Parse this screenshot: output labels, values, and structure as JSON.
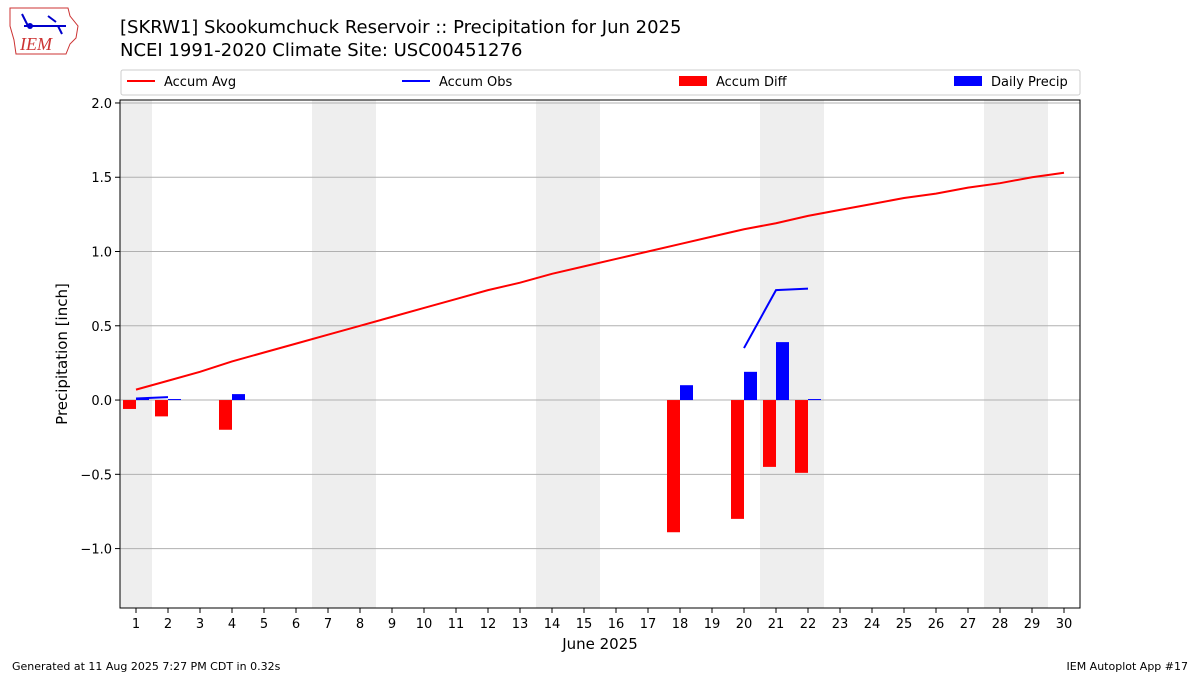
{
  "header": {
    "title_line1": "[SKRW1] Skookumchuck Reservoir :: Precipitation for Jun 2025",
    "title_line2": "NCEI 1991-2020 Climate Site: USC00451276"
  },
  "logo": {
    "text": "IEM"
  },
  "footer": {
    "left": "Generated at 11 Aug 2025 7:27 PM CDT in 0.32s",
    "right": "IEM Autoplot App #17"
  },
  "colors": {
    "avg": "#ff0000",
    "obs": "#0000ff",
    "diff": "#ff0000",
    "daily": "#0000ff",
    "weekend": "#eeeeee",
    "grid": "#b0b0b0"
  },
  "chart_data": {
    "type": "bar",
    "title": "[SKRW1] Skookumchuck Reservoir :: Precipitation for Jun 2025",
    "xlabel": "June 2025",
    "ylabel": "Precipitation [inch]",
    "xlim": [
      0.5,
      30.5
    ],
    "ylim": [
      -1.4,
      2.02
    ],
    "yticks": [
      -1.0,
      -0.5,
      0.0,
      0.5,
      1.0,
      1.5,
      2.0
    ],
    "ytick_labels": [
      "−1.0",
      "−0.5",
      "0.0",
      "0.5",
      "1.0",
      "1.5",
      "2.0"
    ],
    "days": [
      1,
      2,
      3,
      4,
      5,
      6,
      7,
      8,
      9,
      10,
      11,
      12,
      13,
      14,
      15,
      16,
      17,
      18,
      19,
      20,
      21,
      22,
      23,
      24,
      25,
      26,
      27,
      28,
      29,
      30
    ],
    "weekend_days": [
      1,
      7,
      8,
      14,
      15,
      21,
      22,
      28,
      29
    ],
    "legend": {
      "placement": "top",
      "entries": [
        {
          "label": "Accum Avg",
          "kind": "line",
          "color": "#ff0000"
        },
        {
          "label": "Accum Obs",
          "kind": "line",
          "color": "#0000ff"
        },
        {
          "label": "Accum Diff",
          "kind": "bar",
          "color": "#ff0000"
        },
        {
          "label": "Daily Precip",
          "kind": "bar",
          "color": "#0000ff"
        }
      ]
    },
    "series": [
      {
        "name": "Accum Avg",
        "type": "line",
        "color": "#ff0000",
        "x": [
          1,
          2,
          3,
          4,
          5,
          6,
          7,
          8,
          9,
          10,
          11,
          12,
          13,
          14,
          15,
          16,
          17,
          18,
          19,
          20,
          21,
          22,
          23,
          24,
          25,
          26,
          27,
          28,
          29,
          30
        ],
        "values": [
          0.07,
          0.13,
          0.19,
          0.26,
          0.32,
          0.38,
          0.44,
          0.5,
          0.56,
          0.62,
          0.68,
          0.74,
          0.79,
          0.85,
          0.9,
          0.95,
          1.0,
          1.05,
          1.1,
          1.15,
          1.19,
          1.24,
          1.28,
          1.32,
          1.36,
          1.39,
          1.43,
          1.46,
          1.5,
          1.53
        ]
      },
      {
        "name": "Accum Obs",
        "type": "line",
        "color": "#0000ff",
        "segments": [
          {
            "x": [
              1,
              2
            ],
            "values": [
              0.01,
              0.02
            ]
          },
          {
            "x": [
              20,
              21,
              22
            ],
            "values": [
              0.35,
              0.74,
              0.75
            ]
          }
        ]
      },
      {
        "name": "Accum Diff",
        "type": "bar",
        "color": "#ff0000",
        "x": [
          1,
          2,
          4,
          18,
          20,
          21,
          22
        ],
        "values": [
          -0.06,
          -0.11,
          -0.2,
          -0.89,
          -0.8,
          -0.45,
          -0.49
        ]
      },
      {
        "name": "Daily Precip",
        "type": "bar",
        "color": "#0000ff",
        "x": [
          1,
          2,
          4,
          18,
          20,
          21,
          22
        ],
        "values": [
          0.01,
          0.005,
          0.04,
          0.1,
          0.19,
          0.39,
          0.005
        ]
      }
    ]
  }
}
